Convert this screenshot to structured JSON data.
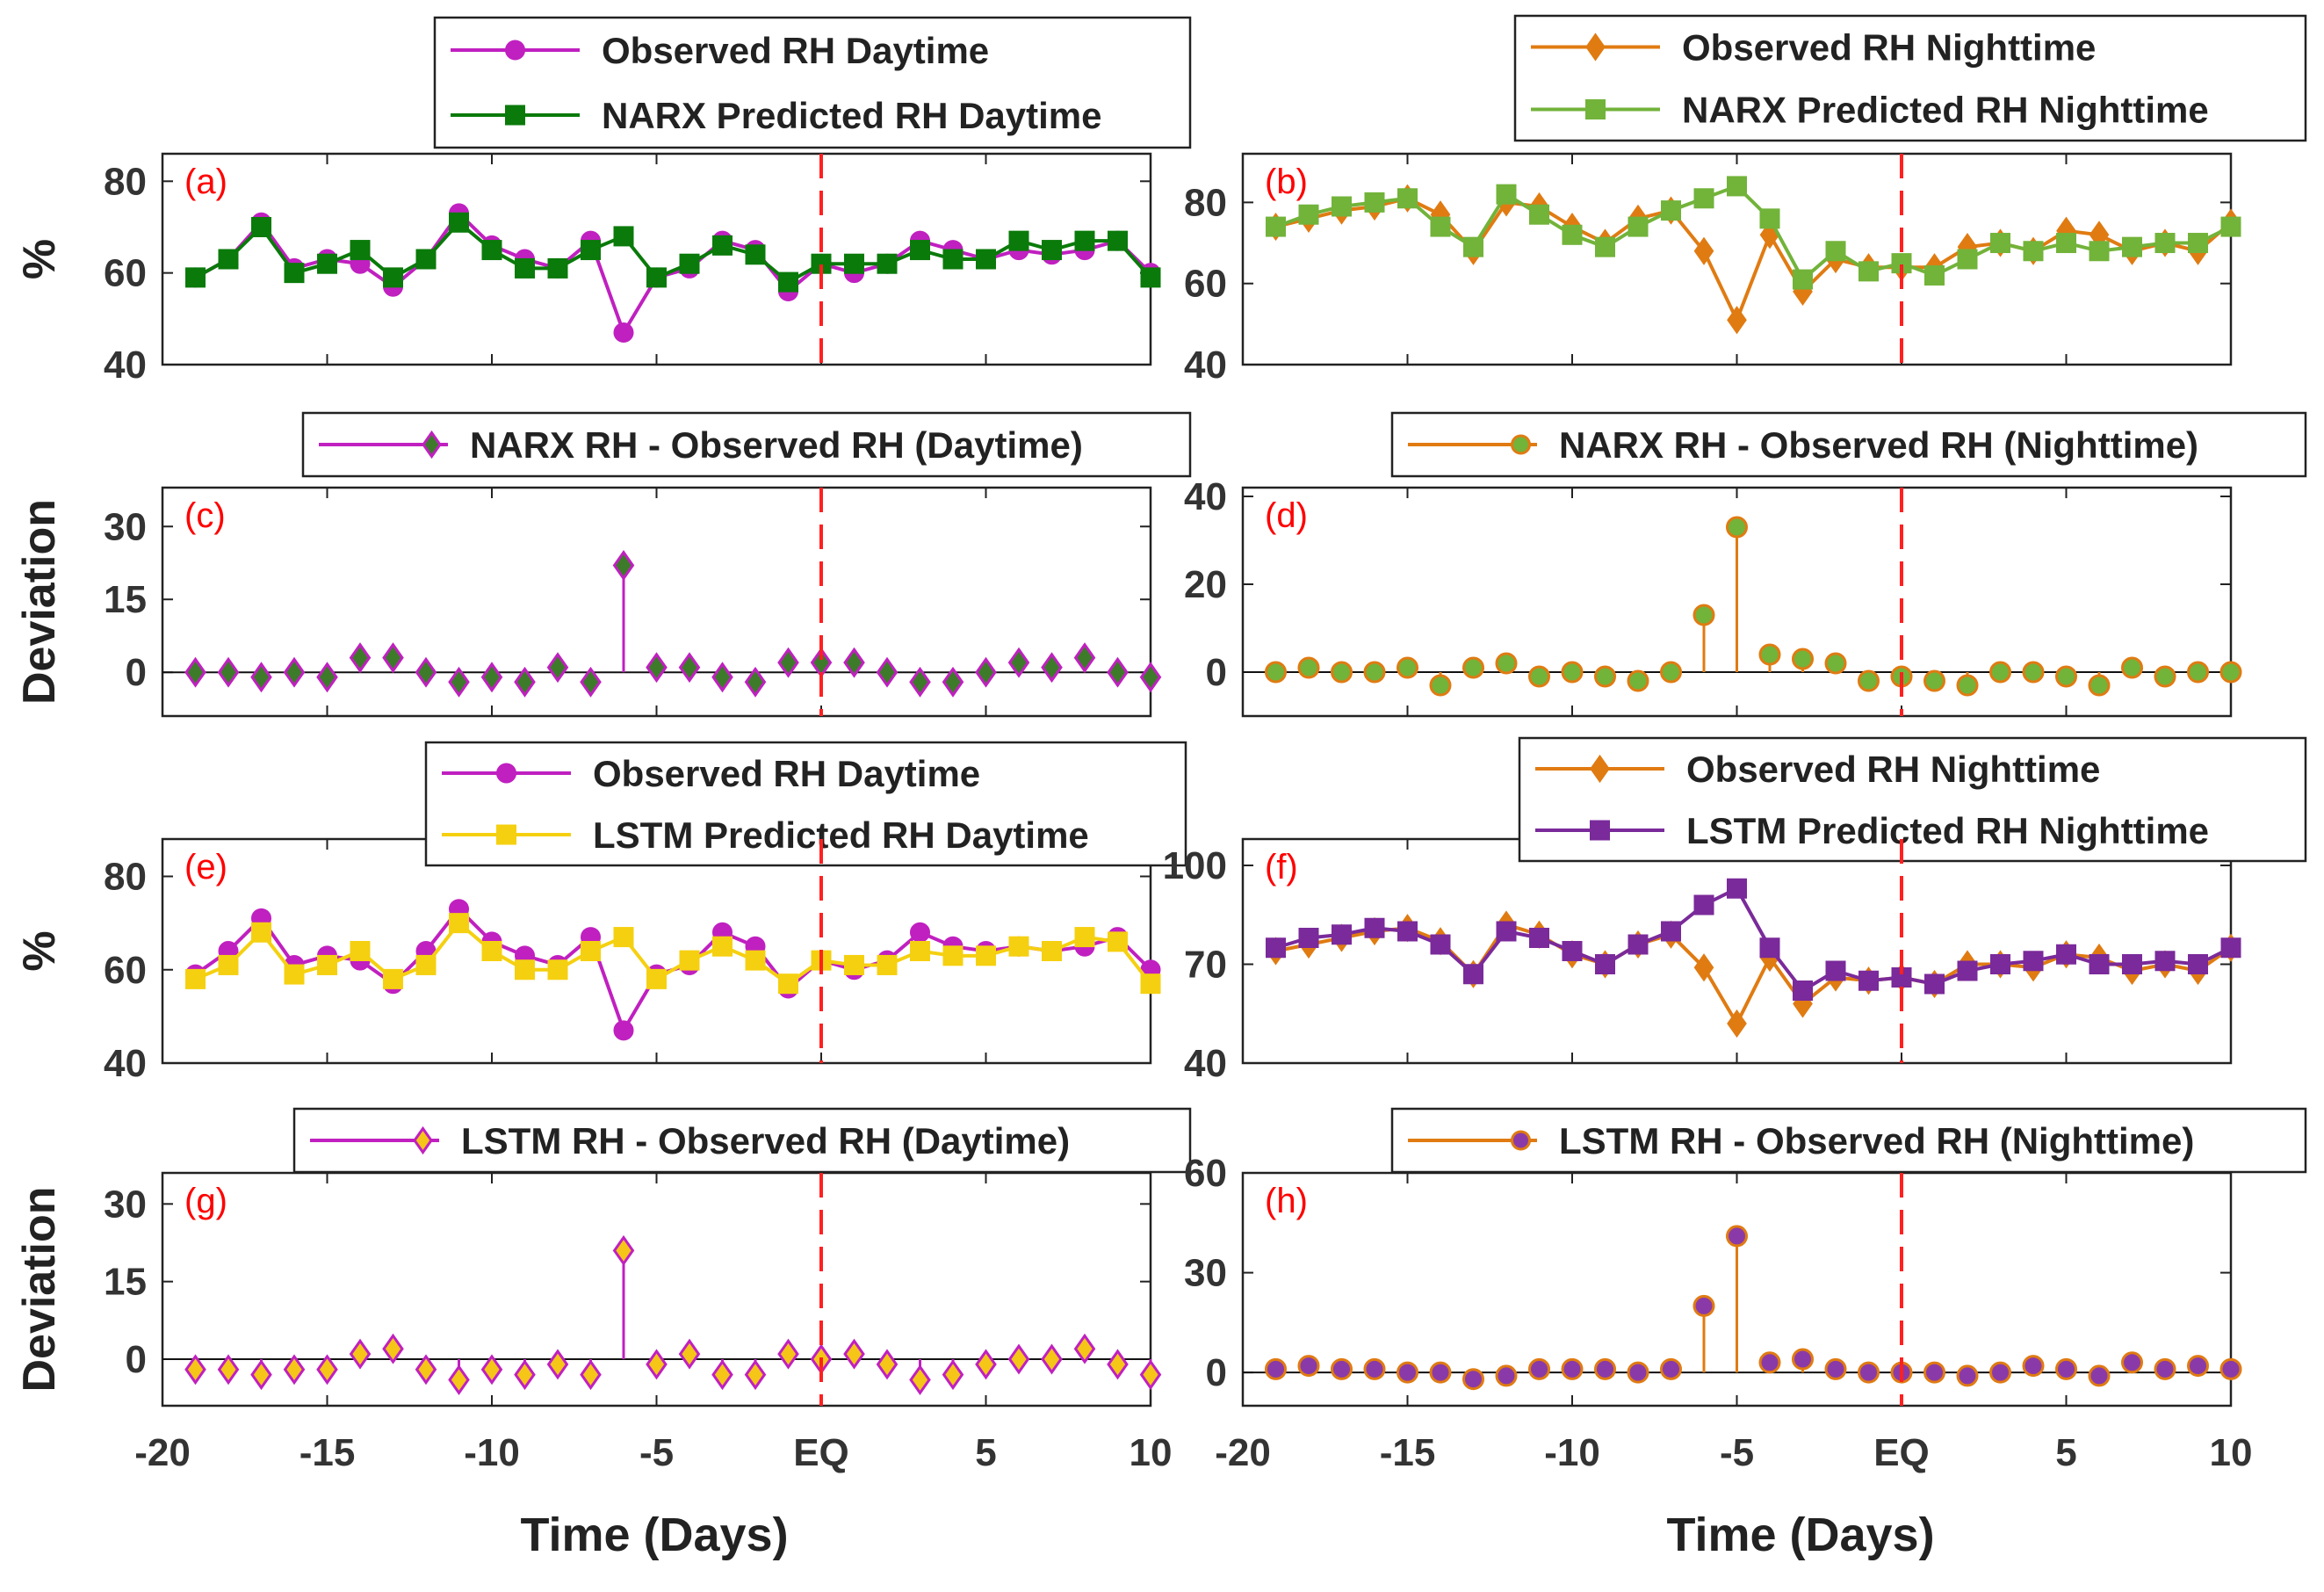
{
  "chart_data": [
    {
      "id": "a",
      "type": "line",
      "panel_label": "(a)",
      "ylabel": "%",
      "ylim": [
        40,
        86
      ],
      "yticks": [
        40,
        60,
        80
      ],
      "xlim": [
        -20,
        10
      ],
      "x": [
        -19,
        -18,
        -17,
        -16,
        -15,
        -14,
        -13,
        -12,
        -11,
        -10,
        -9,
        -8,
        -7,
        -6,
        -5,
        -4,
        -3,
        -2,
        -1,
        0,
        1,
        2,
        3,
        4,
        5,
        6,
        7,
        8,
        9,
        10
      ],
      "series": [
        {
          "name": "Observed RH Daytime",
          "color": "#c020c0",
          "marker": "circle",
          "values": [
            59,
            63,
            71,
            61,
            63,
            62,
            57,
            63,
            73,
            66,
            63,
            61,
            67,
            47,
            59,
            61,
            67,
            65,
            56,
            62,
            60,
            62,
            67,
            65,
            63,
            65,
            64,
            65,
            67,
            60
          ]
        },
        {
          "name": "NARX Predicted RH Daytime",
          "color": "#0a7a0a",
          "marker": "square",
          "values": [
            59,
            63,
            70,
            60,
            62,
            65,
            59,
            63,
            71,
            65,
            61,
            61,
            65,
            68,
            59,
            62,
            66,
            64,
            58,
            62,
            62,
            62,
            65,
            63,
            63,
            67,
            65,
            67,
            67,
            59
          ]
        }
      ]
    },
    {
      "id": "b",
      "type": "line",
      "panel_label": "(b)",
      "ylabel": "",
      "ylim": [
        40,
        92
      ],
      "yticks": [
        40,
        60,
        80
      ],
      "xlim": [
        -20,
        10
      ],
      "x": [
        -19,
        -18,
        -17,
        -16,
        -15,
        -14,
        -13,
        -12,
        -11,
        -10,
        -9,
        -8,
        -7,
        -6,
        -5,
        -4,
        -3,
        -2,
        -1,
        0,
        1,
        2,
        3,
        4,
        5,
        6,
        7,
        8,
        9,
        10
      ],
      "series": [
        {
          "name": "Observed RH Nighttime",
          "color": "#e07b12",
          "marker": "diamond",
          "values": [
            74,
            76,
            78,
            79,
            81,
            77,
            68,
            80,
            79,
            74,
            70,
            76,
            78,
            68,
            51,
            72,
            58,
            66,
            64,
            64,
            64,
            69,
            70,
            68,
            73,
            72,
            68,
            70,
            68,
            75
          ]
        },
        {
          "name": "NARX Predicted RH Nighttime",
          "color": "#72b33a",
          "marker": "square",
          "values": [
            74,
            77,
            79,
            80,
            81,
            74,
            69,
            82,
            77,
            72,
            69,
            74,
            78,
            81,
            84,
            76,
            61,
            68,
            63,
            65,
            62,
            66,
            70,
            68,
            70,
            68,
            69,
            70,
            70,
            74
          ]
        }
      ]
    },
    {
      "id": "c",
      "type": "stem",
      "panel_label": "(c)",
      "ylabel": "Deviation",
      "ylim": [
        -9,
        38
      ],
      "yticks": [
        0,
        15,
        30
      ],
      "xlim": [
        -20,
        10
      ],
      "x": [
        -19,
        -18,
        -17,
        -16,
        -15,
        -14,
        -13,
        -12,
        -11,
        -10,
        -9,
        -8,
        -7,
        -6,
        -5,
        -4,
        -3,
        -2,
        -1,
        0,
        1,
        2,
        3,
        4,
        5,
        6,
        7,
        8,
        9,
        10
      ],
      "series": [
        {
          "name": "NARX RH - Observed RH (Daytime)",
          "color": "#c020c0",
          "marker": "diamond",
          "marker_face": "#3d7a2a",
          "values": [
            0,
            0,
            -1,
            0,
            -1,
            3,
            3,
            0,
            -2,
            -1,
            -2,
            1,
            -2,
            22,
            1,
            1,
            -1,
            -2,
            2,
            2,
            2,
            0,
            -2,
            -2,
            0,
            2,
            1,
            3,
            0,
            -1
          ]
        }
      ]
    },
    {
      "id": "d",
      "type": "stem",
      "panel_label": "(d)",
      "ylabel": "",
      "ylim": [
        -10,
        42
      ],
      "yticks": [
        0,
        20,
        40
      ],
      "xlim": [
        -20,
        10
      ],
      "x": [
        -19,
        -18,
        -17,
        -16,
        -15,
        -14,
        -13,
        -12,
        -11,
        -10,
        -9,
        -8,
        -7,
        -6,
        -5,
        -4,
        -3,
        -2,
        -1,
        0,
        1,
        2,
        3,
        4,
        5,
        6,
        7,
        8,
        9,
        10
      ],
      "series": [
        {
          "name": "NARX RH - Observed RH (Nighttime)",
          "color": "#e07b12",
          "marker": "circle",
          "marker_face": "#72b33a",
          "values": [
            0,
            1,
            0,
            0,
            1,
            -3,
            1,
            2,
            -1,
            0,
            -1,
            -2,
            0,
            13,
            33,
            4,
            3,
            2,
            -2,
            -1,
            -2,
            -3,
            0,
            0,
            -1,
            -3,
            1,
            -1,
            0,
            0
          ]
        }
      ]
    },
    {
      "id": "e",
      "type": "line",
      "panel_label": "(e)",
      "ylabel": "%",
      "ylim": [
        40,
        88
      ],
      "yticks": [
        40,
        60,
        80
      ],
      "xlim": [
        -20,
        10
      ],
      "x": [
        -19,
        -18,
        -17,
        -16,
        -15,
        -14,
        -13,
        -12,
        -11,
        -10,
        -9,
        -8,
        -7,
        -6,
        -5,
        -4,
        -3,
        -2,
        -1,
        0,
        1,
        2,
        3,
        4,
        5,
        6,
        7,
        8,
        9,
        10
      ],
      "series": [
        {
          "name": "Observed RH Daytime",
          "color": "#c020c0",
          "marker": "circle",
          "values": [
            59,
            64,
            71,
            61,
            63,
            62,
            57,
            64,
            73,
            66,
            63,
            61,
            67,
            47,
            59,
            61,
            68,
            65,
            56,
            62,
            60,
            62,
            68,
            65,
            64,
            65,
            64,
            65,
            67,
            60
          ]
        },
        {
          "name": "LSTM Predicted RH Daytime",
          "color": "#f5d010",
          "marker": "square",
          "values": [
            58,
            61,
            68,
            59,
            61,
            64,
            58,
            61,
            70,
            64,
            60,
            60,
            64,
            67,
            58,
            62,
            65,
            62,
            57,
            62,
            61,
            61,
            64,
            63,
            63,
            65,
            64,
            67,
            66,
            57
          ]
        }
      ]
    },
    {
      "id": "f",
      "type": "line",
      "panel_label": "(f)",
      "ylabel": "",
      "ylim": [
        40,
        108
      ],
      "yticks": [
        40,
        70,
        100
      ],
      "xlim": [
        -20,
        10
      ],
      "x": [
        -19,
        -18,
        -17,
        -16,
        -15,
        -14,
        -13,
        -12,
        -11,
        -10,
        -9,
        -8,
        -7,
        -6,
        -5,
        -4,
        -3,
        -2,
        -1,
        0,
        1,
        2,
        3,
        4,
        5,
        6,
        7,
        8,
        9,
        10
      ],
      "series": [
        {
          "name": "Observed RH Nighttime",
          "color": "#e07b12",
          "marker": "diamond",
          "values": [
            74,
            76,
            78,
            80,
            81,
            77,
            67,
            82,
            79,
            73,
            70,
            76,
            79,
            69,
            52,
            72,
            58,
            66,
            65,
            66,
            64,
            70,
            70,
            69,
            73,
            72,
            68,
            70,
            68,
            75
          ]
        },
        {
          "name": "LSTM Predicted RH Nighttime",
          "color": "#7a2a9a",
          "marker": "square",
          "values": [
            75,
            78,
            79,
            81,
            80,
            76,
            67,
            80,
            78,
            74,
            70,
            76,
            80,
            88,
            93,
            75,
            62,
            68,
            65,
            66,
            64,
            68,
            70,
            71,
            73,
            70,
            70,
            71,
            70,
            75
          ]
        }
      ]
    },
    {
      "id": "g",
      "type": "stem",
      "panel_label": "(g)",
      "ylabel": "Deviation",
      "ylim": [
        -9,
        36
      ],
      "yticks": [
        0,
        15,
        30
      ],
      "xlim": [
        -20,
        10
      ],
      "x": [
        -19,
        -18,
        -17,
        -16,
        -15,
        -14,
        -13,
        -12,
        -11,
        -10,
        -9,
        -8,
        -7,
        -6,
        -5,
        -4,
        -3,
        -2,
        -1,
        0,
        1,
        2,
        3,
        4,
        5,
        6,
        7,
        8,
        9,
        10
      ],
      "series": [
        {
          "name": "LSTM RH - Observed RH (Daytime)",
          "color": "#c020c0",
          "marker": "diamond",
          "marker_face": "#f5c518",
          "values": [
            -2,
            -2,
            -3,
            -2,
            -2,
            1,
            2,
            -2,
            -4,
            -2,
            -3,
            -1,
            -3,
            21,
            -1,
            1,
            -3,
            -3,
            1,
            0,
            1,
            -1,
            -4,
            -3,
            -1,
            0,
            0,
            2,
            -1,
            -3
          ]
        }
      ]
    },
    {
      "id": "h",
      "type": "stem",
      "panel_label": "(h)",
      "ylabel": "",
      "ylim": [
        -10,
        60
      ],
      "yticks": [
        0,
        30,
        60
      ],
      "xlim": [
        -20,
        10
      ],
      "x": [
        -19,
        -18,
        -17,
        -16,
        -15,
        -14,
        -13,
        -12,
        -11,
        -10,
        -9,
        -8,
        -7,
        -6,
        -5,
        -4,
        -3,
        -2,
        -1,
        0,
        1,
        2,
        3,
        4,
        5,
        6,
        7,
        8,
        9,
        10
      ],
      "xlabel": "Time (Days)",
      "series": [
        {
          "name": "LSTM RH - Observed RH (Nighttime)",
          "color": "#e07b12",
          "marker": "circle",
          "marker_face": "#8a3aa8",
          "values": [
            1,
            2,
            1,
            1,
            0,
            0,
            -2,
            -1,
            1,
            1,
            1,
            0,
            1,
            20,
            41,
            3,
            4,
            1,
            0,
            0,
            0,
            -1,
            0,
            2,
            1,
            -1,
            3,
            1,
            2,
            1
          ]
        }
      ]
    }
  ],
  "axis": {
    "xtick_labels": [
      "-20",
      "-15",
      "-10",
      "-5",
      "EQ",
      "5",
      "10"
    ],
    "xtick_values": [
      -20,
      -15,
      -10,
      -5,
      0,
      5,
      10
    ],
    "xlabel": "Time (Days)",
    "eq_line": {
      "x": 0,
      "color": "#ff2020"
    }
  }
}
